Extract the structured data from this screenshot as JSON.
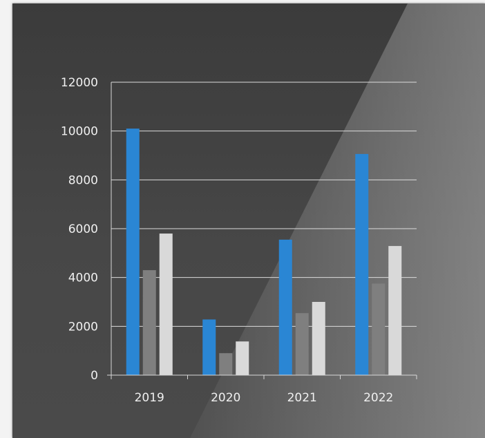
{
  "chart_data": {
    "type": "bar",
    "title": "",
    "xlabel": "",
    "ylabel": "",
    "categories": [
      "2019",
      "2020",
      "2021",
      "2022"
    ],
    "series": [
      {
        "values": [
          10100,
          2280,
          5550,
          9060
        ],
        "color": "#2a86d4"
      },
      {
        "values": [
          4300,
          900,
          2540,
          3750
        ],
        "color": "#7f7f7f"
      },
      {
        "values": [
          5800,
          1380,
          3000,
          5290
        ],
        "color": "#d9d9d9"
      }
    ],
    "ylim": [
      0,
      12000
    ],
    "yticks": [
      "0",
      "2000",
      "4000",
      "6000",
      "8000",
      "10000",
      "12000"
    ],
    "grid": true,
    "legend": "none"
  }
}
